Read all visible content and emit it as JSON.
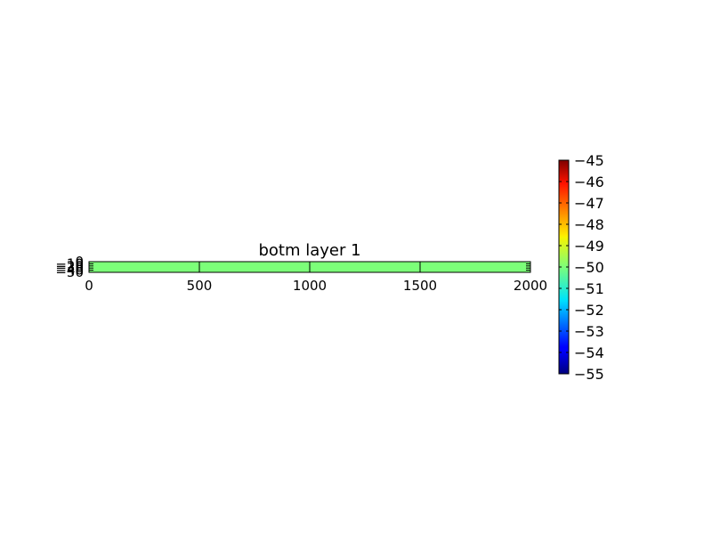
{
  "chart_data": {
    "type": "heatmap",
    "title": "botm layer 1",
    "xlabel": "",
    "ylabel": "",
    "xlim": [
      0,
      2000
    ],
    "ylim": [
      -50,
      0
    ],
    "x_ticks": [
      0,
      500,
      1000,
      1500,
      2000
    ],
    "x_tick_labels": [
      "0",
      "500",
      "1000",
      "1500",
      "2000"
    ],
    "y_ticks": [
      0,
      -10,
      -20,
      -30,
      -40,
      -50
    ],
    "y_tick_labels": [
      "0",
      "10",
      "20",
      "30",
      "40",
      "50"
    ],
    "grid": false,
    "cell_value": -50,
    "cell_color": "#7cff79",
    "colorbar": {
      "cmap": "jet",
      "vmin": -55,
      "vmax": -45,
      "ticks": [
        -45,
        -46,
        -47,
        -48,
        -49,
        -50,
        -51,
        -52,
        -53,
        -54,
        -55
      ],
      "tick_labels": [
        "−45",
        "−46",
        "−47",
        "−48",
        "−49",
        "−50",
        "−51",
        "−52",
        "−53",
        "−54",
        "−55"
      ]
    }
  }
}
